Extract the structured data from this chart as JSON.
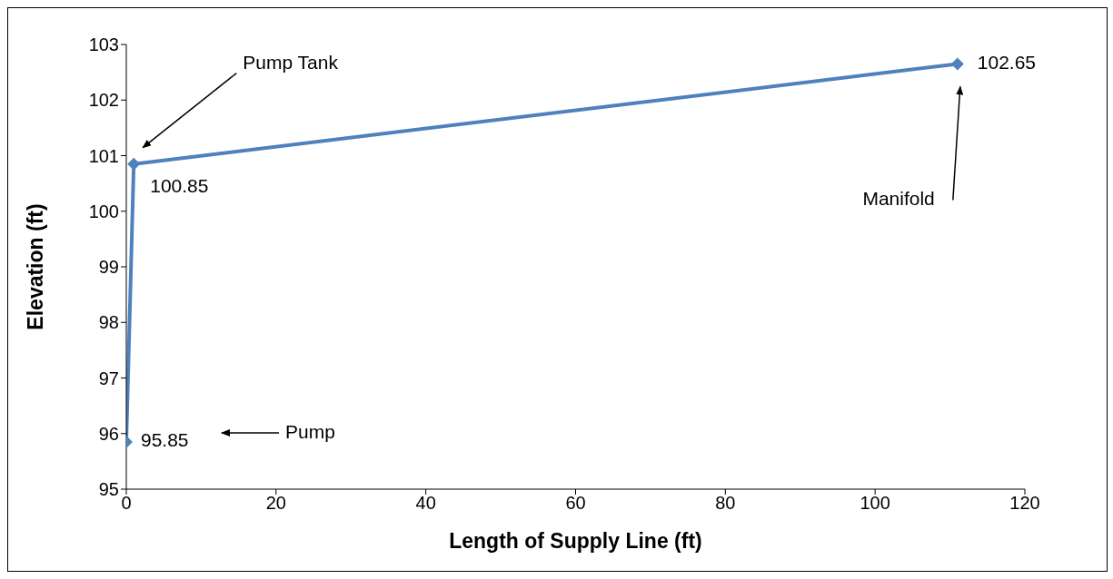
{
  "chart_data": {
    "type": "line",
    "xlabel": "Length of Supply Line (ft)",
    "ylabel": "Elevation (ft)",
    "x": [
      0,
      1,
      111
    ],
    "series": [
      {
        "color": "#4f81bd",
        "values": [
          95.85,
          100.85,
          102.65
        ]
      }
    ],
    "data_labels": true,
    "marker": "diamond",
    "line_style": "solid",
    "grid": false,
    "legend": false,
    "xlim": [
      0,
      120
    ],
    "xticks": [
      0,
      20,
      40,
      60,
      80,
      100,
      120
    ],
    "ylim": [
      95,
      103
    ],
    "yticks": [
      95,
      96,
      97,
      98,
      99,
      100,
      101,
      102,
      103
    ],
    "annotations": [
      "Pump",
      "Pump Tank",
      "Manifold"
    ]
  }
}
